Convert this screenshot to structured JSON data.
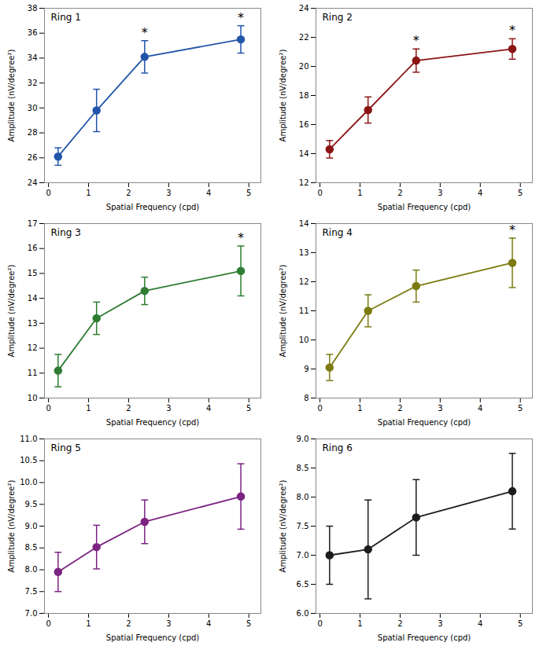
{
  "chart_data": [
    {
      "type": "line",
      "annotations": [
        "Ring 1"
      ],
      "xlabel": "Spatial Frequency (cpd)",
      "ylabel": "Amplitude (nV/degree²)",
      "x": [
        0.24,
        1.2,
        2.4,
        4.8
      ],
      "xlim": [
        -0.1,
        5.3
      ],
      "xticks": [
        0,
        1,
        2,
        3,
        4,
        5
      ],
      "ylim": [
        24,
        38
      ],
      "yticks": [
        24,
        26,
        28,
        30,
        32,
        34,
        36,
        38
      ],
      "grid": false,
      "series": [
        {
          "color": "#2255AA",
          "marker": "circle",
          "line_style": "solid",
          "values": [
            26.1,
            29.8,
            34.1,
            35.5
          ],
          "yerr": [
            0.7,
            1.7,
            1.3,
            1.1
          ],
          "significance": [
            null,
            null,
            "*",
            "*"
          ]
        }
      ]
    },
    {
      "type": "line",
      "annotations": [
        "Ring 2"
      ],
      "xlabel": "Spatial Frequency (cpd)",
      "ylabel": "Amplitude (nV/degree²)",
      "x": [
        0.24,
        1.2,
        2.4,
        4.8
      ],
      "xlim": [
        -0.1,
        5.3
      ],
      "xticks": [
        0,
        1,
        2,
        3,
        4,
        5
      ],
      "ylim": [
        12,
        24
      ],
      "yticks": [
        12,
        14,
        16,
        18,
        20,
        22,
        24
      ],
      "grid": false,
      "series": [
        {
          "color": "#8B1515",
          "marker": "circle",
          "line_style": "solid",
          "values": [
            14.3,
            17.0,
            20.4,
            21.2
          ],
          "yerr": [
            0.6,
            0.9,
            0.8,
            0.7
          ],
          "significance": [
            null,
            null,
            "*",
            "*"
          ]
        }
      ]
    },
    {
      "type": "line",
      "annotations": [
        "Ring 3"
      ],
      "xlabel": "Spatial Frequency (cpd)",
      "ylabel": "Amplitude (nV/degree²)",
      "x": [
        0.24,
        1.2,
        2.4,
        4.8
      ],
      "xlim": [
        -0.1,
        5.3
      ],
      "xticks": [
        0,
        1,
        2,
        3,
        4,
        5
      ],
      "ylim": [
        10,
        17
      ],
      "yticks": [
        10,
        11,
        12,
        13,
        14,
        15,
        16,
        17
      ],
      "grid": false,
      "series": [
        {
          "color": "#2E7D32",
          "marker": "circle",
          "line_style": "solid",
          "values": [
            11.1,
            13.2,
            14.3,
            15.1
          ],
          "yerr": [
            0.65,
            0.65,
            0.55,
            1.0
          ],
          "significance": [
            null,
            null,
            null,
            "*"
          ]
        }
      ]
    },
    {
      "type": "line",
      "annotations": [
        "Ring 4"
      ],
      "xlabel": "Spatial Frequency (cpd)",
      "ylabel": "Amplitude (nV/degree²)",
      "x": [
        0.24,
        1.2,
        2.4,
        4.8
      ],
      "xlim": [
        -0.1,
        5.3
      ],
      "xticks": [
        0,
        1,
        2,
        3,
        4,
        5
      ],
      "ylim": [
        8,
        14
      ],
      "yticks": [
        8,
        9,
        10,
        11,
        12,
        13,
        14
      ],
      "grid": false,
      "series": [
        {
          "color": "#7B7B10",
          "marker": "circle",
          "line_style": "solid",
          "values": [
            9.05,
            11.0,
            11.85,
            12.65
          ],
          "yerr": [
            0.45,
            0.55,
            0.55,
            0.85
          ],
          "significance": [
            null,
            null,
            null,
            "*"
          ]
        }
      ]
    },
    {
      "type": "line",
      "annotations": [
        "Ring 5"
      ],
      "xlabel": "Spatial Frequency (cpd)",
      "ylabel": "Amplitude (nV/degree²)",
      "x": [
        0.24,
        1.2,
        2.4,
        4.8
      ],
      "xlim": [
        -0.1,
        5.3
      ],
      "xticks": [
        0,
        1,
        2,
        3,
        4,
        5
      ],
      "ylim": [
        7.0,
        11.0
      ],
      "yticks": [
        {
          "value": 7.0,
          "label": "7.0"
        },
        {
          "value": 7.5,
          "label": "7.5"
        },
        {
          "value": 8.0,
          "label": "8.0"
        },
        {
          "value": 8.5,
          "label": "8.5"
        },
        {
          "value": 9.0,
          "label": "9.0"
        },
        {
          "value": 9.5,
          "label": "9.5"
        },
        {
          "value": 10.0,
          "label": "10.0"
        },
        {
          "value": 10.5,
          "label": "10.5"
        },
        {
          "value": 11.0,
          "label": "11.0"
        }
      ],
      "grid": false,
      "series": [
        {
          "color": "#7B2482",
          "marker": "circle",
          "line_style": "solid",
          "values": [
            7.95,
            8.52,
            9.1,
            9.68
          ],
          "yerr": [
            0.45,
            0.5,
            0.5,
            0.75
          ],
          "significance": [
            null,
            null,
            null,
            null
          ]
        }
      ]
    },
    {
      "type": "line",
      "annotations": [
        "Ring 6"
      ],
      "xlabel": "Spatial Frequency (cpd)",
      "ylabel": "Amplitude (nV/degree²)",
      "x": [
        0.24,
        1.2,
        2.4,
        4.8
      ],
      "xlim": [
        -0.1,
        5.3
      ],
      "xticks": [
        0,
        1,
        2,
        3,
        4,
        5
      ],
      "ylim": [
        6.0,
        9.0
      ],
      "yticks": [
        {
          "value": 6.0,
          "label": "6.0"
        },
        {
          "value": 6.5,
          "label": "6.5"
        },
        {
          "value": 7.0,
          "label": "7.0"
        },
        {
          "value": 7.5,
          "label": "7.5"
        },
        {
          "value": 8.0,
          "label": "8.0"
        },
        {
          "value": 8.5,
          "label": "8.5"
        },
        {
          "value": 9.0,
          "label": "9.0"
        }
      ],
      "grid": false,
      "series": [
        {
          "color": "#1C1C1C",
          "marker": "circle",
          "line_style": "solid",
          "values": [
            7.0,
            7.1,
            7.65,
            8.1
          ],
          "yerr": [
            0.5,
            0.85,
            0.65,
            0.65
          ],
          "significance": [
            null,
            null,
            null,
            null
          ]
        }
      ]
    }
  ]
}
